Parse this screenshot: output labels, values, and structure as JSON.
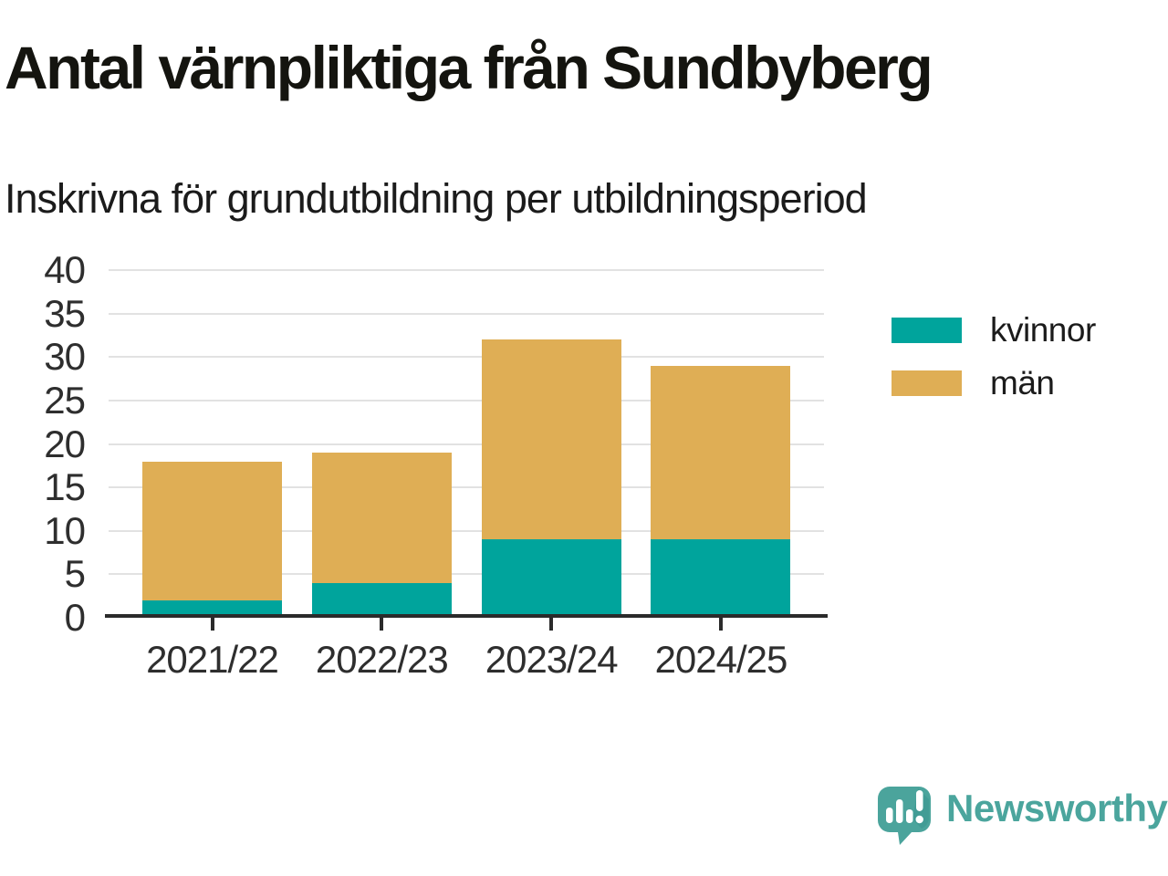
{
  "header": {
    "title": "Antal värnpliktiga från Sundbyberg",
    "subtitle": "Inskrivna för grundutbildning per utbildningsperiod"
  },
  "chart_data": {
    "type": "bar",
    "stacked": true,
    "title": "Antal värnpliktiga från Sundbyberg",
    "subtitle": "Inskrivna för grundutbildning per utbildningsperiod",
    "categories": [
      "2021/22",
      "2022/23",
      "2023/24",
      "2024/25"
    ],
    "series": [
      {
        "name": "kvinnor",
        "color": "#00a49c",
        "values": [
          2,
          4,
          9,
          9
        ]
      },
      {
        "name": "män",
        "color": "#dfae55",
        "values": [
          16,
          15,
          23,
          20
        ]
      }
    ],
    "stack_totals": [
      18,
      19,
      32,
      29
    ],
    "xlabel": "",
    "ylabel": "",
    "ylim": [
      0,
      40
    ],
    "y_ticks": [
      0,
      5,
      10,
      15,
      20,
      25,
      30,
      35,
      40
    ],
    "grid": true,
    "legend_position": "right",
    "colors": {
      "grid": "#e2e2e2",
      "axis": "#2b2b2b",
      "tick_label": "#2e2e2e"
    }
  },
  "legend": {
    "items": [
      {
        "label": "kvinnor",
        "color": "#00a49c"
      },
      {
        "label": "män",
        "color": "#dfae55"
      }
    ]
  },
  "branding": {
    "logo_text": "Newsworthy",
    "logo_color": "#4ba59d",
    "logo_icon": "speech-bubble-bar-chart-icon"
  }
}
